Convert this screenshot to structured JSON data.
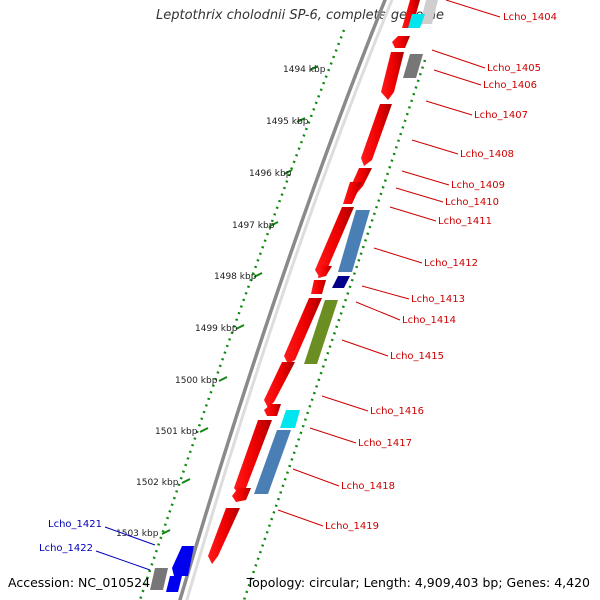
{
  "title": "Leptothrix cholodnii SP-6, complete genome",
  "accession": "Accession: NC_010524",
  "topology": "Topology: circular; Length: 4,909,403 bp; Genes: 4,420",
  "ticks": [
    {
      "kbp": 1494,
      "label": "1494 kbp"
    },
    {
      "kbp": 1495,
      "label": "1495 kbp"
    },
    {
      "kbp": 1496,
      "label": "1496 kbp"
    },
    {
      "kbp": 1497,
      "label": "1497 kbp"
    },
    {
      "kbp": 1498,
      "label": "1498 kbp"
    },
    {
      "kbp": 1499,
      "label": "1499 kbp"
    },
    {
      "kbp": 1500,
      "label": "1500 kbp"
    },
    {
      "kbp": 1501,
      "label": "1501 kbp"
    },
    {
      "kbp": 1502,
      "label": "1502 kbp"
    },
    {
      "kbp": 1503,
      "label": "1503 kbp"
    }
  ],
  "gene_labels": [
    {
      "name": "Lcho_1404",
      "color": "#cc0000"
    },
    {
      "name": "Lcho_1405",
      "color": "#cc0000"
    },
    {
      "name": "Lcho_1406",
      "color": "#cc0000"
    },
    {
      "name": "Lcho_1407",
      "color": "#cc0000"
    },
    {
      "name": "Lcho_1408",
      "color": "#cc0000"
    },
    {
      "name": "Lcho_1409",
      "color": "#cc0000"
    },
    {
      "name": "Lcho_1410",
      "color": "#cc0000"
    },
    {
      "name": "Lcho_1411",
      "color": "#cc0000"
    },
    {
      "name": "Lcho_1412",
      "color": "#cc0000"
    },
    {
      "name": "Lcho_1413",
      "color": "#cc0000"
    },
    {
      "name": "Lcho_1414",
      "color": "#cc0000"
    },
    {
      "name": "Lcho_1415",
      "color": "#cc0000"
    },
    {
      "name": "Lcho_1416",
      "color": "#cc0000"
    },
    {
      "name": "Lcho_1417",
      "color": "#cc0000"
    },
    {
      "name": "Lcho_1418",
      "color": "#cc0000"
    },
    {
      "name": "Lcho_1419",
      "color": "#cc0000"
    },
    {
      "name": "Lcho_1421",
      "color": "#0000bb"
    },
    {
      "name": "Lcho_1422",
      "color": "#0000bb"
    }
  ],
  "colors": {
    "backbone": "#888888",
    "tick_green": "#118811",
    "forward_red": "#ff0000",
    "steelblue": "#4a7fb5",
    "navy": "#000088",
    "olive": "#6b8e23",
    "cyan": "#00e5ee",
    "gray": "#777777",
    "blue": "#0000ee",
    "label_red": "#cc0000",
    "label_blue": "#0000bb"
  }
}
